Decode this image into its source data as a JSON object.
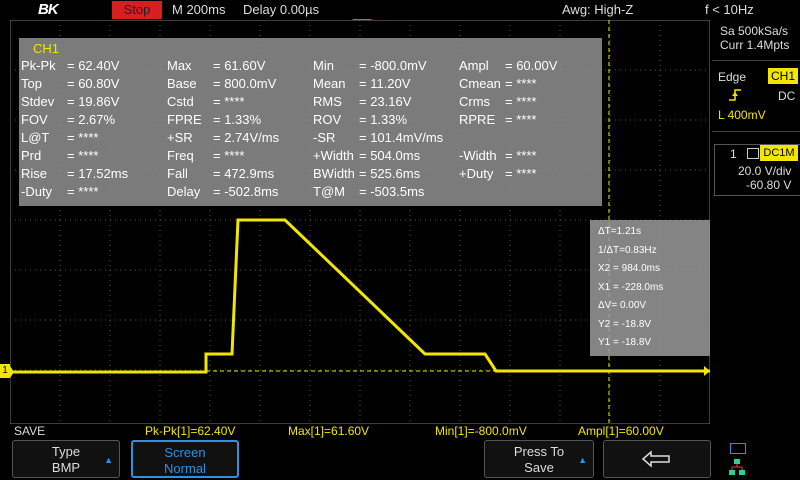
{
  "topbar": {
    "logo": "BK",
    "run_state": "Stop",
    "timebase": "M 200ms",
    "delay": "Delay 0.00µs",
    "acquire": "Awg: High-Z",
    "freq": "f < 10Hz"
  },
  "right_panel": {
    "sample_rate": "Sa 500kSa/s",
    "memory": "Curr 1.4Mpts",
    "trigger_type": "Edge",
    "trigger_source": "CH1",
    "trigger_coupling": "DC",
    "trigger_level": "L  400mV",
    "ch_number": "1",
    "ch_coupling": "DC1M",
    "vdiv": "20.0 V/div",
    "offset": "-60.80 V"
  },
  "measure": {
    "title": "CH1",
    "rows": [
      [
        [
          "Pk-Pk",
          "= 62.40V"
        ],
        [
          "Max",
          "= 61.60V"
        ],
        [
          "Min",
          "= -800.0mV"
        ],
        [
          "Ampl",
          "= 60.00V"
        ]
      ],
      [
        [
          "Top",
          "= 60.80V"
        ],
        [
          "Base",
          "= 800.0mV"
        ],
        [
          "Mean",
          "= 11.20V"
        ],
        [
          "Cmean",
          "= ****"
        ]
      ],
      [
        [
          "Stdev",
          "= 19.86V"
        ],
        [
          "Cstd",
          "= ****"
        ],
        [
          "RMS",
          "= 23.16V"
        ],
        [
          "Crms",
          "= ****"
        ]
      ],
      [
        [
          "FOV",
          "= 2.67%"
        ],
        [
          "FPRE",
          "= 1.33%"
        ],
        [
          "ROV",
          "= 1.33%"
        ],
        [
          "RPRE",
          "= ****"
        ]
      ],
      [
        [
          "L@T",
          "= ****"
        ],
        [
          "+SR",
          "= 2.74V/ms"
        ],
        [
          "-SR",
          "= 101.4mV/ms"
        ],
        [
          "",
          ""
        ]
      ],
      [
        [
          "Prd",
          "= ****"
        ],
        [
          "Freq",
          "= ****"
        ],
        [
          "+Width",
          "= 504.0ms"
        ],
        [
          "-Width",
          "= ****"
        ]
      ],
      [
        [
          "Rise",
          "= 17.52ms"
        ],
        [
          "Fall",
          "= 472.9ms"
        ],
        [
          "BWidth",
          "= 525.6ms"
        ],
        [
          "+Duty",
          "= ****"
        ]
      ],
      [
        [
          "-Duty",
          "= ****"
        ],
        [
          "Delay",
          "= -502.8ms"
        ],
        [
          "T@M",
          "= -503.5ms"
        ],
        [
          "",
          ""
        ]
      ]
    ]
  },
  "cursors": [
    "ΔT=1.21s",
    "1/ΔT=0.83Hz",
    "X2 = 984.0ms",
    "X1 = -228.0ms",
    "ΔV= 0.00V",
    "Y2 = -18.8V",
    "Y1 = -18.8V"
  ],
  "status": {
    "left": "SAVE",
    "pkpk": "Pk-Pk[1]=62.40V",
    "max": "Max[1]=61.60V",
    "min": "Min[1]=-800.0mV",
    "ampl": "Ampl[1]=60.00V"
  },
  "softkeys": {
    "type_label": "Type",
    "type_value": "BMP",
    "screen_label": "Screen",
    "screen_value": "Normal",
    "press_label": "Press To",
    "press_value": "Save"
  },
  "colors": {
    "trace": "#f2e600",
    "accent": "#2f8fe0",
    "stop": "#d81e1e"
  }
}
